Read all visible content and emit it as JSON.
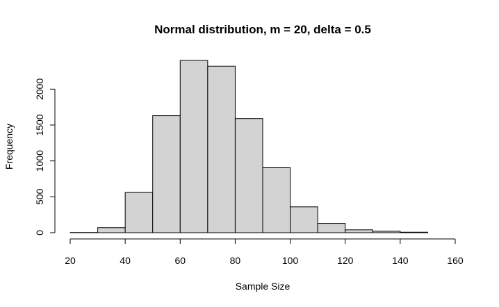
{
  "chart_data": {
    "type": "bar",
    "title": "Normal distribution, m = 20, delta = 0.5",
    "xlabel": "Sample Size",
    "ylabel": "Frequency",
    "bin_edges": [
      20,
      30,
      40,
      50,
      60,
      70,
      80,
      90,
      100,
      110,
      120,
      130,
      140,
      150
    ],
    "values": [
      3,
      70,
      560,
      1630,
      2400,
      2320,
      1590,
      905,
      360,
      130,
      40,
      20,
      7
    ],
    "xlim": [
      20,
      160
    ],
    "ylim": [
      0,
      2400
    ],
    "x_ticks": [
      20,
      40,
      60,
      80,
      100,
      120,
      140,
      160
    ],
    "y_ticks": [
      0,
      500,
      1000,
      1500,
      2000
    ],
    "x_tick_labels": [
      "20",
      "40",
      "60",
      "80",
      "100",
      "120",
      "140",
      "160"
    ],
    "y_tick_labels": [
      "0",
      "500",
      "1000",
      "1500",
      "2000"
    ],
    "grid": false,
    "bar_color": "#d3d3d3",
    "edge_color": "#000000"
  }
}
